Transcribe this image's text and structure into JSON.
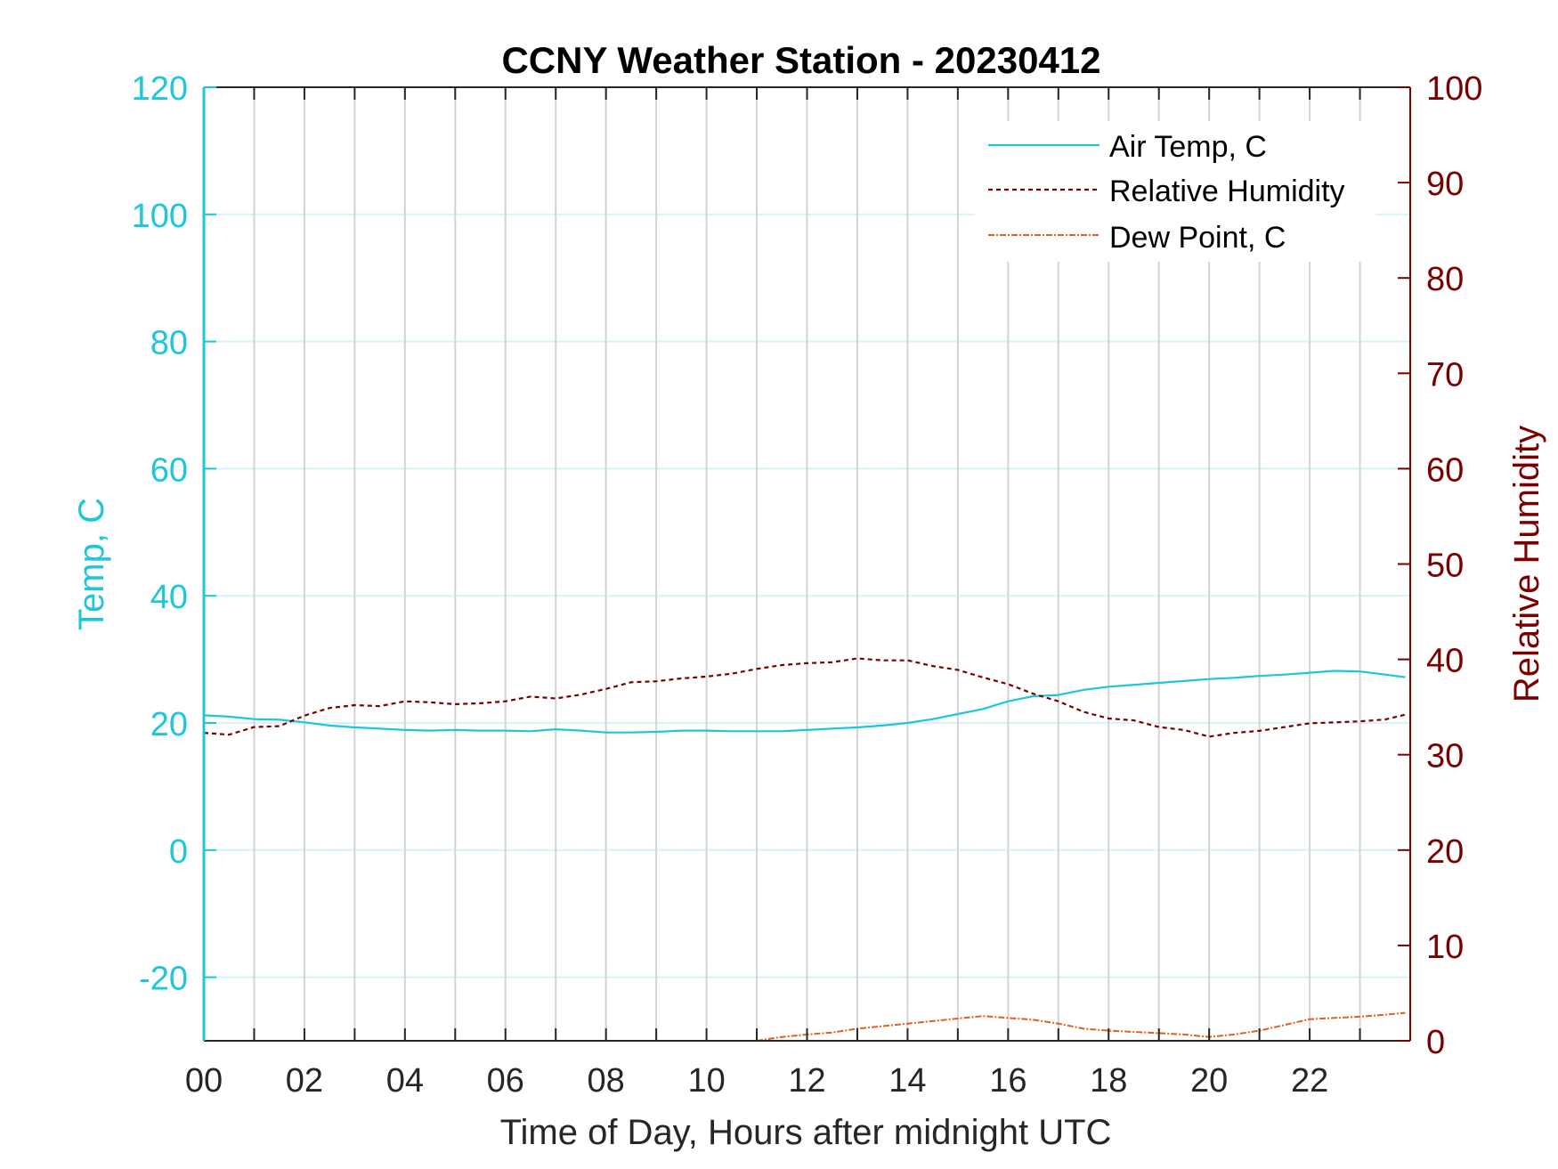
{
  "chart_data": {
    "type": "line",
    "title": "CCNY Weather Station - 20230412",
    "xlabel": "Time of Day, Hours after midnight UTC",
    "ylabel_left": "Temp, C",
    "ylabel_right": "Relative Humidity",
    "xlim": [
      0,
      24
    ],
    "ylim_left": [
      -30,
      120
    ],
    "ylim_right": [
      0,
      100
    ],
    "xticks": [
      "00",
      "02",
      "04",
      "06",
      "08",
      "10",
      "12",
      "14",
      "16",
      "18",
      "20",
      "22"
    ],
    "yticks_left": [
      "-20",
      "0",
      "20",
      "40",
      "60",
      "80",
      "100",
      "120"
    ],
    "yticks_right": [
      "0",
      "10",
      "20",
      "30",
      "40",
      "50",
      "60",
      "70",
      "80",
      "90",
      "100"
    ],
    "grid": true,
    "legend_position": "top-right",
    "colors": {
      "air_temp": "#1cc7d8",
      "humidity": "#7a0000",
      "dew_point": "#e06020",
      "grid_vertical": "#d0d4d8",
      "grid_horizontal": "#d8f3f6",
      "left_axis": "#1cc7d8",
      "right_axis": "#7a0000"
    },
    "series": [
      {
        "name": "Air Temp, C",
        "axis": "left",
        "style": "solid",
        "x": [
          0,
          0.5,
          1,
          1.5,
          2,
          2.5,
          3,
          3.5,
          4,
          4.5,
          5,
          5.5,
          6,
          6.5,
          7,
          7.5,
          8,
          8.5,
          9,
          9.5,
          10,
          10.5,
          11,
          11.5,
          12,
          12.5,
          13,
          13.5,
          14,
          14.5,
          15,
          15.5,
          16,
          16.5,
          17,
          17.5,
          18,
          18.5,
          19,
          19.5,
          20,
          20.5,
          21,
          21.5,
          22,
          22.5,
          23,
          23.5,
          23.9
        ],
        "y": [
          21.2,
          21.0,
          20.6,
          20.5,
          20.1,
          19.6,
          19.3,
          19.1,
          18.9,
          18.8,
          18.9,
          18.8,
          18.8,
          18.7,
          19.0,
          18.8,
          18.5,
          18.5,
          18.6,
          18.8,
          18.8,
          18.7,
          18.7,
          18.7,
          18.9,
          19.1,
          19.3,
          19.6,
          20.0,
          20.6,
          21.4,
          22.2,
          23.4,
          24.2,
          24.4,
          25.2,
          25.7,
          26.0,
          26.3,
          26.6,
          26.9,
          27.1,
          27.4,
          27.6,
          27.9,
          28.2,
          28.1,
          27.6,
          27.2
        ]
      },
      {
        "name": "Relative Humidity",
        "axis": "right",
        "style": "dashed",
        "x": [
          0,
          0.5,
          1,
          1.5,
          2,
          2.5,
          3,
          3.5,
          4,
          4.5,
          5,
          5.5,
          6,
          6.5,
          7,
          7.5,
          8,
          8.5,
          9,
          9.5,
          10,
          10.5,
          11,
          11.5,
          12,
          12.5,
          13,
          13.5,
          14,
          14.5,
          15,
          15.5,
          16,
          16.5,
          17,
          17.5,
          18,
          18.5,
          19,
          19.5,
          20,
          20.5,
          21,
          21.5,
          22,
          22.5,
          23,
          23.5,
          23.9
        ],
        "y": [
          32.3,
          32.1,
          32.9,
          33.0,
          34.1,
          34.9,
          35.2,
          35.1,
          35.6,
          35.5,
          35.3,
          35.4,
          35.6,
          36.1,
          35.9,
          36.3,
          36.9,
          37.6,
          37.7,
          38.0,
          38.2,
          38.5,
          39.0,
          39.4,
          39.6,
          39.7,
          40.1,
          39.9,
          39.9,
          39.3,
          38.9,
          38.1,
          37.4,
          36.4,
          35.6,
          34.5,
          33.8,
          33.6,
          32.9,
          32.6,
          31.9,
          32.3,
          32.5,
          32.9,
          33.3,
          33.4,
          33.5,
          33.7,
          34.2
        ]
      },
      {
        "name": "Dew Point, C",
        "axis": "left",
        "style": "dash-dot",
        "x": [
          11,
          11.5,
          12,
          12.5,
          13,
          13.5,
          14,
          14.5,
          15,
          15.5,
          16,
          16.5,
          17,
          17.5,
          18,
          18.5,
          19,
          19.5,
          20,
          20.5,
          21,
          21.5,
          22,
          22.5,
          23,
          23.5,
          23.9
        ],
        "y": [
          -30.0,
          -29.4,
          -29.0,
          -28.7,
          -28.1,
          -27.7,
          -27.3,
          -26.9,
          -26.5,
          -26.1,
          -26.4,
          -26.7,
          -27.3,
          -28.1,
          -28.4,
          -28.6,
          -28.8,
          -29.0,
          -29.4,
          -29.0,
          -28.4,
          -27.5,
          -26.6,
          -26.4,
          -26.2,
          -25.9,
          -25.6
        ]
      }
    ]
  }
}
